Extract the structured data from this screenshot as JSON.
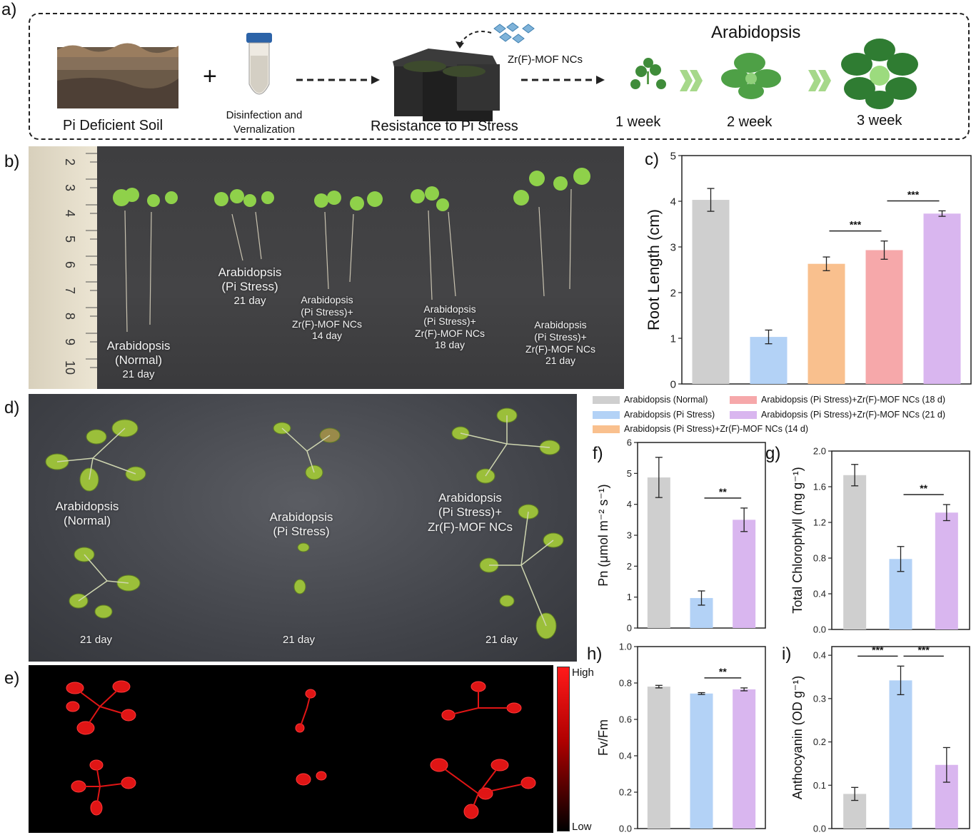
{
  "panels": {
    "a": "a)",
    "b": "b)",
    "c": "c)",
    "d": "d)",
    "e": "e)",
    "f": "f)",
    "g": "g)",
    "h": "h)",
    "i": "i)"
  },
  "workflow": {
    "soil_label": "Pi Deficient Soil",
    "plus": "+",
    "tube_label_1": "Disinfection and",
    "tube_label_2": "Vernalization",
    "pots_label": "Resistance to Pi Stress",
    "mof_label": "Zr(F)-MOF NCs",
    "species": "Arabidopsis",
    "weeks": [
      "1 week",
      "2 week",
      "3 week"
    ]
  },
  "photo_b": {
    "ruler_numbers": [
      "2",
      "3",
      "4",
      "5",
      "6",
      "7",
      "8",
      "9",
      "10"
    ],
    "captions": [
      [
        "Arabidopsis",
        "(Normal)",
        "21 day"
      ],
      [
        "Arabidopsis",
        "(Pi Stress)",
        "21 day"
      ],
      [
        "Arabidopsis",
        "(Pi Stress)+",
        "Zr(F)-MOF NCs",
        "14 day"
      ],
      [
        "Arabidopsis",
        "(Pi Stress)+",
        "Zr(F)-MOF NCs",
        "18 day"
      ],
      [
        "Arabidopsis",
        "(Pi Stress)+",
        "Zr(F)-MOF NCs",
        "21 day"
      ]
    ]
  },
  "photo_d": {
    "captions": [
      [
        "Arabidopsis",
        "(Normal)"
      ],
      [
        "Arabidopsis",
        "(Pi Stress)"
      ],
      [
        "Arabidopsis",
        "(Pi Stress)+",
        "Zr(F)-MOF NCs"
      ]
    ],
    "days": [
      "21 day",
      "21 day",
      "21 day"
    ]
  },
  "photo_e": {
    "scale_high": "High",
    "scale_low": "Low"
  },
  "legend": [
    {
      "label": "Arabidopsis (Normal)",
      "color": "#cfcfcf"
    },
    {
      "label": "Arabidopsis (Pi Stress)",
      "color": "#b3d2f6"
    },
    {
      "label": "Arabidopsis (Pi Stress)+Zr(F)-MOF NCs (14 d)",
      "color": "#f9c08e"
    },
    {
      "label": "Arabidopsis (Pi Stress)+Zr(F)-MOF NCs (18 d)",
      "color": "#f6a8aa"
    },
    {
      "label": "Arabidopsis (Pi Stress)+Zr(F)-MOF NCs (21 d)",
      "color": "#d9b6ef"
    }
  ],
  "chart_data": [
    {
      "id": "c",
      "type": "bar",
      "ylabel": "Root Length (cm)",
      "ylim": [
        0,
        5
      ],
      "ticks": [
        "0",
        "1",
        "2",
        "3",
        "4",
        "5"
      ],
      "values": [
        4.03,
        1.03,
        2.63,
        2.93,
        3.73
      ],
      "errors": [
        0.25,
        0.15,
        0.15,
        0.2,
        0.06
      ],
      "colors": [
        "#cfcfcf",
        "#b3d2f6",
        "#f9c08e",
        "#f6a8aa",
        "#d9b6ef"
      ],
      "significance": [
        {
          "from": 2,
          "to": 3,
          "label": "***"
        },
        {
          "from": 3,
          "to": 4,
          "label": "***"
        }
      ]
    },
    {
      "id": "f",
      "type": "bar",
      "ylabel": "Pn (μmol m⁻² s⁻¹)",
      "ylim": [
        0,
        6
      ],
      "ticks": [
        "0",
        "1",
        "2",
        "3",
        "4",
        "5",
        "6"
      ],
      "values": [
        4.87,
        0.97,
        3.5
      ],
      "errors": [
        0.65,
        0.23,
        0.38
      ],
      "colors": [
        "#cfcfcf",
        "#b3d2f6",
        "#d9b6ef"
      ],
      "significance": [
        {
          "from": 1,
          "to": 2,
          "label": "**"
        }
      ]
    },
    {
      "id": "g",
      "type": "bar",
      "ylabel": "Total Chlorophyll (mg g⁻¹)",
      "ylim": [
        0,
        2.0
      ],
      "ticks": [
        "0.0",
        "0.4",
        "0.8",
        "1.2",
        "1.6",
        "2.0"
      ],
      "values": [
        1.73,
        0.79,
        1.31
      ],
      "errors": [
        0.12,
        0.14,
        0.09
      ],
      "colors": [
        "#cfcfcf",
        "#b3d2f6",
        "#d9b6ef"
      ],
      "significance": [
        {
          "from": 1,
          "to": 2,
          "label": "**"
        }
      ]
    },
    {
      "id": "h",
      "type": "bar",
      "ylabel": "Fv/Fm",
      "ylim": [
        0,
        1.0
      ],
      "ticks": [
        "0.0",
        "0.2",
        "0.4",
        "0.6",
        "0.8",
        "1.0"
      ],
      "values": [
        0.78,
        0.742,
        0.765
      ],
      "errors": [
        0.007,
        0.005,
        0.008
      ],
      "colors": [
        "#cfcfcf",
        "#b3d2f6",
        "#d9b6ef"
      ],
      "significance": [
        {
          "from": 1,
          "to": 2,
          "label": "**"
        }
      ]
    },
    {
      "id": "i",
      "type": "bar",
      "ylabel": "Anthocyanin (OD g⁻¹)",
      "ylim": [
        0,
        0.42
      ],
      "ticks": [
        "0.0",
        "0.1",
        "0.2",
        "0.3",
        "0.4"
      ],
      "tick_values": [
        0,
        0.1,
        0.2,
        0.3,
        0.4
      ],
      "values": [
        0.08,
        0.342,
        0.147
      ],
      "errors": [
        0.015,
        0.033,
        0.04
      ],
      "colors": [
        "#cfcfcf",
        "#b3d2f6",
        "#d9b6ef"
      ],
      "significance": [
        {
          "from": 0,
          "to": 1,
          "label": "***"
        },
        {
          "from": 1,
          "to": 2,
          "label": "***"
        }
      ]
    }
  ]
}
